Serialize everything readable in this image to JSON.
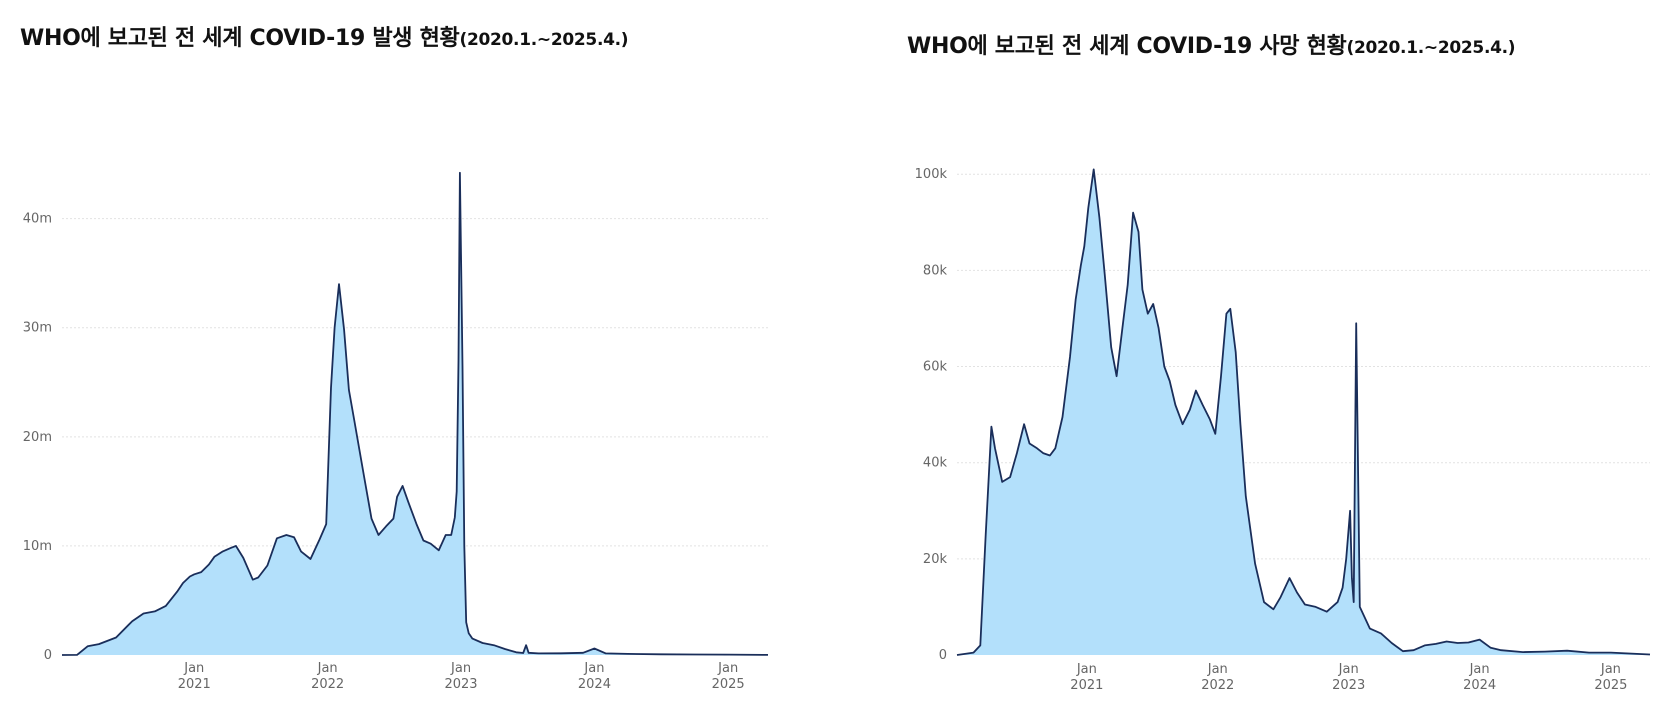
{
  "chart_data": [
    {
      "type": "area",
      "title": "WHO에 보고된 전 세계 COVID-19 발생 현황",
      "subtitle": "(2020.1.~2025.4.)",
      "ylim": [
        0,
        44000000
      ],
      "y_ticks": [
        {
          "value": 0,
          "label": "0"
        },
        {
          "value": 10000000,
          "label": "10m"
        },
        {
          "value": 20000000,
          "label": "20m"
        },
        {
          "value": 30000000,
          "label": "30m"
        },
        {
          "value": 40000000,
          "label": "40m"
        }
      ],
      "x_ticks": [
        {
          "value": "2021-01-01",
          "month": "Jan",
          "year": "2021"
        },
        {
          "value": "2022-01-01",
          "month": "Jan",
          "year": "2022"
        },
        {
          "value": "2023-01-01",
          "month": "Jan",
          "year": "2023"
        },
        {
          "value": "2024-01-01",
          "month": "Jan",
          "year": "2024"
        },
        {
          "value": "2025-01-01",
          "month": "Jan",
          "year": "2025"
        }
      ],
      "xlim": [
        "2020-01-05",
        "2025-04-20"
      ],
      "grid": true,
      "colors": {
        "fill": "#b3e0fb",
        "line": "#1a2e5a"
      },
      "series": [
        {
          "x": [
            "2020-01-05",
            "2020-02-15",
            "2020-03-15",
            "2020-04-15",
            "2020-06-01",
            "2020-07-15",
            "2020-08-15",
            "2020-09-15",
            "2020-10-15",
            "2020-11-15",
            "2020-12-01",
            "2020-12-20",
            "2021-01-01",
            "2021-01-20",
            "2021-02-10",
            "2021-02-25",
            "2021-03-20",
            "2021-04-10",
            "2021-04-25",
            "2021-05-15",
            "2021-06-10",
            "2021-06-25",
            "2021-07-20",
            "2021-08-15",
            "2021-09-10",
            "2021-10-01",
            "2021-10-20",
            "2021-11-15",
            "2021-12-10",
            "2021-12-28",
            "2022-01-10",
            "2022-01-20",
            "2022-02-01",
            "2022-02-15",
            "2022-02-28",
            "2022-03-15",
            "2022-04-10",
            "2022-05-01",
            "2022-05-20",
            "2022-06-10",
            "2022-06-30",
            "2022-07-10",
            "2022-07-25",
            "2022-08-10",
            "2022-09-01",
            "2022-09-20",
            "2022-10-10",
            "2022-11-01",
            "2022-11-20",
            "2022-12-05",
            "2022-12-15",
            "2022-12-20",
            "2022-12-25",
            "2022-12-29",
            "2023-01-05",
            "2023-01-10",
            "2023-01-15",
            "2023-01-22",
            "2023-02-01",
            "2023-03-01",
            "2023-04-01",
            "2023-05-01",
            "2023-06-01",
            "2023-06-20",
            "2023-06-28",
            "2023-07-05",
            "2023-08-01",
            "2023-10-01",
            "2023-12-01",
            "2024-01-01",
            "2024-02-01",
            "2024-04-01",
            "2024-07-01",
            "2024-10-01",
            "2025-01-01",
            "2025-04-20"
          ],
          "values": [
            0,
            10000,
            800000,
            1000000,
            1600000,
            3100000,
            3800000,
            4000000,
            4500000,
            5800000,
            6600000,
            7200000,
            7400000,
            7600000,
            8300000,
            9000000,
            9500000,
            9800000,
            10000000,
            8900000,
            6900000,
            7100000,
            8200000,
            10700000,
            11000000,
            10800000,
            9500000,
            8800000,
            10600000,
            12000000,
            24500000,
            30000000,
            34000000,
            29800000,
            24300000,
            21500000,
            16500000,
            12500000,
            11000000,
            11800000,
            12500000,
            14500000,
            15500000,
            14000000,
            12000000,
            10500000,
            10200000,
            9600000,
            11000000,
            11000000,
            12600000,
            15000000,
            27000000,
            44200000,
            26500000,
            10000000,
            3000000,
            2000000,
            1500000,
            1100000,
            900000,
            550000,
            250000,
            180000,
            900000,
            200000,
            150000,
            160000,
            200000,
            600000,
            150000,
            100000,
            60000,
            50000,
            40000,
            10000
          ]
        }
      ]
    },
    {
      "type": "area",
      "title": "WHO에 보고된 전 세계 COVID-19 사망 현황",
      "subtitle": "(2020.1.~2025.4.)",
      "ylim": [
        0,
        104000
      ],
      "y_ticks": [
        {
          "value": 0,
          "label": "0"
        },
        {
          "value": 20000,
          "label": "20k"
        },
        {
          "value": 40000,
          "label": "40k"
        },
        {
          "value": 60000,
          "label": "60k"
        },
        {
          "value": 80000,
          "label": "80k"
        },
        {
          "value": 100000,
          "label": "100k"
        }
      ],
      "x_ticks": [
        {
          "value": "2021-01-01",
          "month": "Jan",
          "year": "2021"
        },
        {
          "value": "2022-01-01",
          "month": "Jan",
          "year": "2022"
        },
        {
          "value": "2023-01-01",
          "month": "Jan",
          "year": "2023"
        },
        {
          "value": "2024-01-01",
          "month": "Jan",
          "year": "2024"
        },
        {
          "value": "2025-01-01",
          "month": "Jan",
          "year": "2025"
        }
      ],
      "xlim": [
        "2020-01-05",
        "2025-04-20"
      ],
      "grid": true,
      "colors": {
        "fill": "#b3e0fb",
        "line": "#1a2e5a"
      },
      "series": [
        {
          "x": [
            "2020-01-05",
            "2020-02-01",
            "2020-02-20",
            "2020-03-10",
            "2020-03-25",
            "2020-04-10",
            "2020-04-20",
            "2020-05-10",
            "2020-06-01",
            "2020-06-20",
            "2020-07-10",
            "2020-07-25",
            "2020-08-15",
            "2020-09-01",
            "2020-09-20",
            "2020-10-05",
            "2020-10-25",
            "2020-11-15",
            "2020-12-01",
            "2020-12-15",
            "2020-12-25",
            "2021-01-05",
            "2021-01-20",
            "2021-02-05",
            "2021-02-20",
            "2021-03-10",
            "2021-03-25",
            "2021-04-10",
            "2021-04-25",
            "2021-05-10",
            "2021-05-25",
            "2021-06-05",
            "2021-06-20",
            "2021-07-05",
            "2021-07-20",
            "2021-08-05",
            "2021-08-20",
            "2021-09-05",
            "2021-09-25",
            "2021-10-15",
            "2021-11-01",
            "2021-11-20",
            "2021-12-10",
            "2021-12-25",
            "2022-01-10",
            "2022-01-25",
            "2022-02-05",
            "2022-02-20",
            "2022-03-05",
            "2022-03-20",
            "2022-04-15",
            "2022-05-10",
            "2022-06-05",
            "2022-06-25",
            "2022-07-20",
            "2022-08-10",
            "2022-09-01",
            "2022-10-01",
            "2022-11-01",
            "2022-12-01",
            "2022-12-15",
            "2022-12-25",
            "2023-01-05",
            "2023-01-10",
            "2023-01-15",
            "2023-01-22",
            "2023-02-01",
            "2023-03-01",
            "2023-04-01",
            "2023-05-01",
            "2023-06-01",
            "2023-07-01",
            "2023-08-01",
            "2023-09-01",
            "2023-10-01",
            "2023-11-01",
            "2023-12-01",
            "2024-01-01",
            "2024-02-01",
            "2024-03-01",
            "2024-05-01",
            "2024-07-01",
            "2024-09-01",
            "2024-11-01",
            "2025-01-01",
            "2025-04-20"
          ],
          "values": [
            0,
            300,
            500,
            2000,
            25000,
            47500,
            43000,
            36000,
            37000,
            42000,
            48000,
            44000,
            43000,
            42000,
            41500,
            43000,
            49500,
            62000,
            74000,
            81000,
            85000,
            93000,
            101000,
            91000,
            79000,
            64000,
            58000,
            68000,
            77000,
            92000,
            88000,
            76000,
            71000,
            73000,
            68000,
            60000,
            57000,
            52000,
            48000,
            51000,
            55000,
            52000,
            49000,
            46000,
            58000,
            71000,
            72000,
            63000,
            48000,
            33000,
            19000,
            11000,
            9500,
            12000,
            16000,
            13000,
            10500,
            10000,
            9000,
            11000,
            14000,
            20000,
            30000,
            16000,
            11000,
            69000,
            10000,
            5500,
            4500,
            2500,
            800,
            1000,
            2000,
            2300,
            2800,
            2500,
            2600,
            3200,
            1500,
            1000,
            600,
            700,
            900,
            500,
            500,
            100
          ]
        }
      ]
    }
  ]
}
